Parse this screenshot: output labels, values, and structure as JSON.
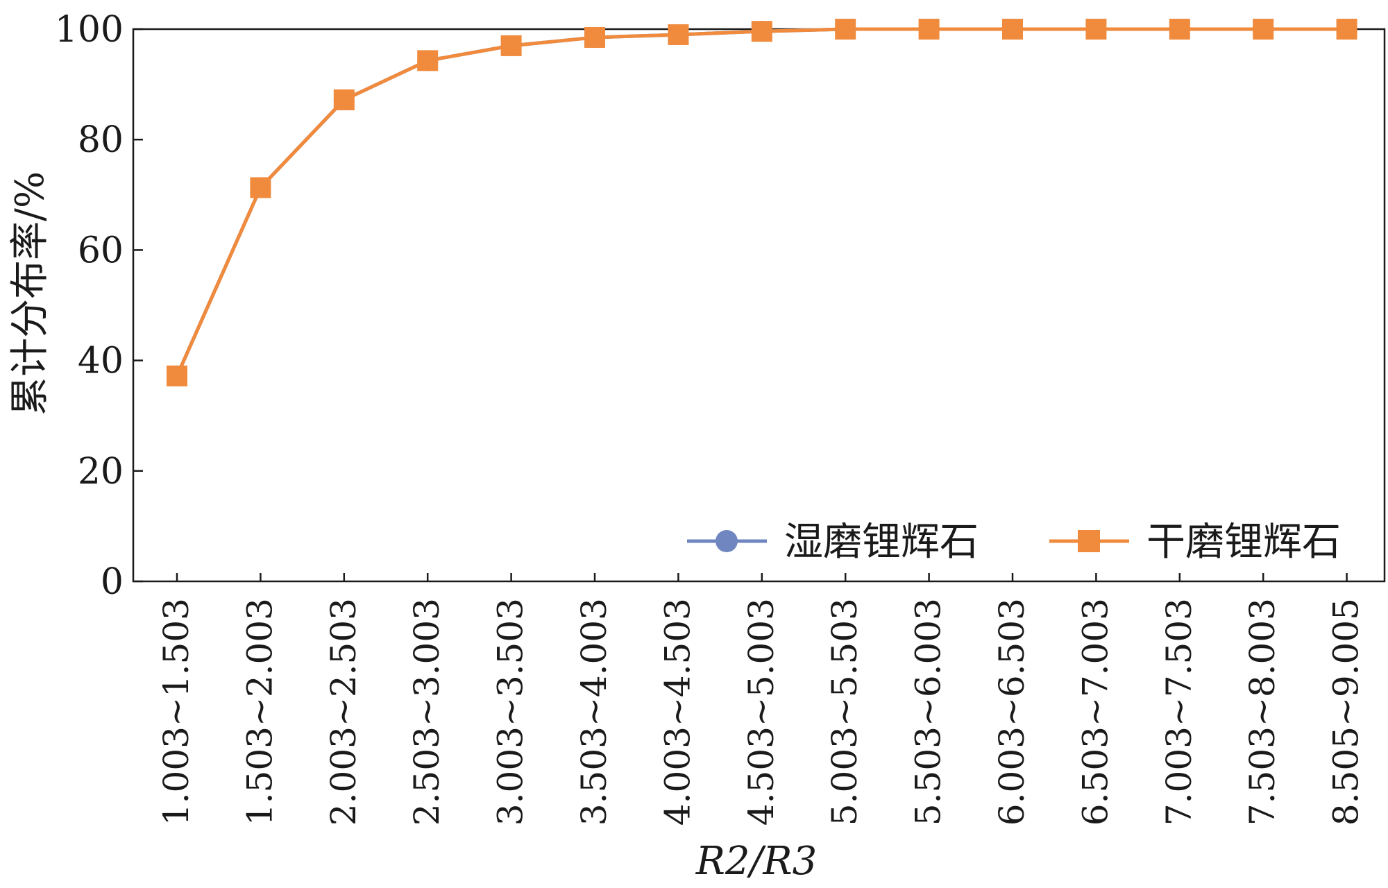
{
  "chart_data": {
    "type": "line",
    "xlabel": "R2/R3",
    "ylabel": "累计分布率/%",
    "ylim": [
      0,
      100
    ],
    "yticks": [
      0,
      20,
      40,
      60,
      80,
      100
    ],
    "grid": false,
    "legend_position": "bottom-right",
    "categories": [
      "1.003~1.503",
      "1.503~2.003",
      "2.003~2.503",
      "2.503~3.003",
      "3.003~3.503",
      "3.503~4.003",
      "4.003~4.503",
      "4.503~5.003",
      "5.003~5.503",
      "5.503~6.003",
      "6.003~6.503",
      "6.503~7.003",
      "7.003~7.503",
      "7.503~8.003",
      "8.505~9.005"
    ],
    "series": [
      {
        "name": "湿磨锂辉石",
        "color": "#6f86c0",
        "marker": "circle",
        "values": [
          37.2,
          71.3,
          87.2,
          94.3,
          97.0,
          98.5,
          99.0,
          99.6,
          100,
          100,
          100,
          100,
          100,
          100,
          100
        ]
      },
      {
        "name": "干磨锂辉石",
        "color": "#f08a3c",
        "marker": "square",
        "values": [
          37.2,
          71.3,
          87.2,
          94.3,
          97.0,
          98.5,
          99.0,
          99.6,
          100,
          100,
          100,
          100,
          100,
          100,
          100
        ]
      }
    ]
  }
}
